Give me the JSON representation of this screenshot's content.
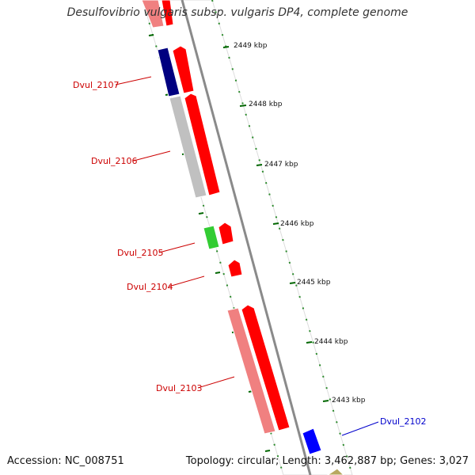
{
  "title": "Desulfovibrio vulgaris subsp. vulgaris DP4, complete genome",
  "accession": "Accession: NC_008751",
  "genome_info": "Topology: circular; Length: 3,462,887 bp; Genes: 3,027",
  "colors": {
    "forward_strand": "#ff0000",
    "reverse_pink": "#f08080",
    "reverse_gray": "#c0c0c0",
    "reverse_navy": "#000080",
    "reverse_green": "#33cc33",
    "highlight_blue": "#0000ff",
    "label_red": "#cc0000",
    "label_blue": "#0000cc",
    "tick_green": "#006600"
  },
  "kbp_labels": [
    "2449 kbp",
    "2448 kbp",
    "2447 kbp",
    "2446 kbp",
    "2445 kbp",
    "2444 kbp",
    "2443 kbp"
  ],
  "gene_labels": [
    {
      "text": "Dvul_2107",
      "color": "label_red"
    },
    {
      "text": "Dvul_2106",
      "color": "label_red"
    },
    {
      "text": "Dvul_2105",
      "color": "label_red"
    },
    {
      "text": "Dvul_2104",
      "color": "label_red"
    },
    {
      "text": "Dvul_2103",
      "color": "label_red"
    },
    {
      "text": "Dvul_2102",
      "color": "label_blue"
    }
  ]
}
